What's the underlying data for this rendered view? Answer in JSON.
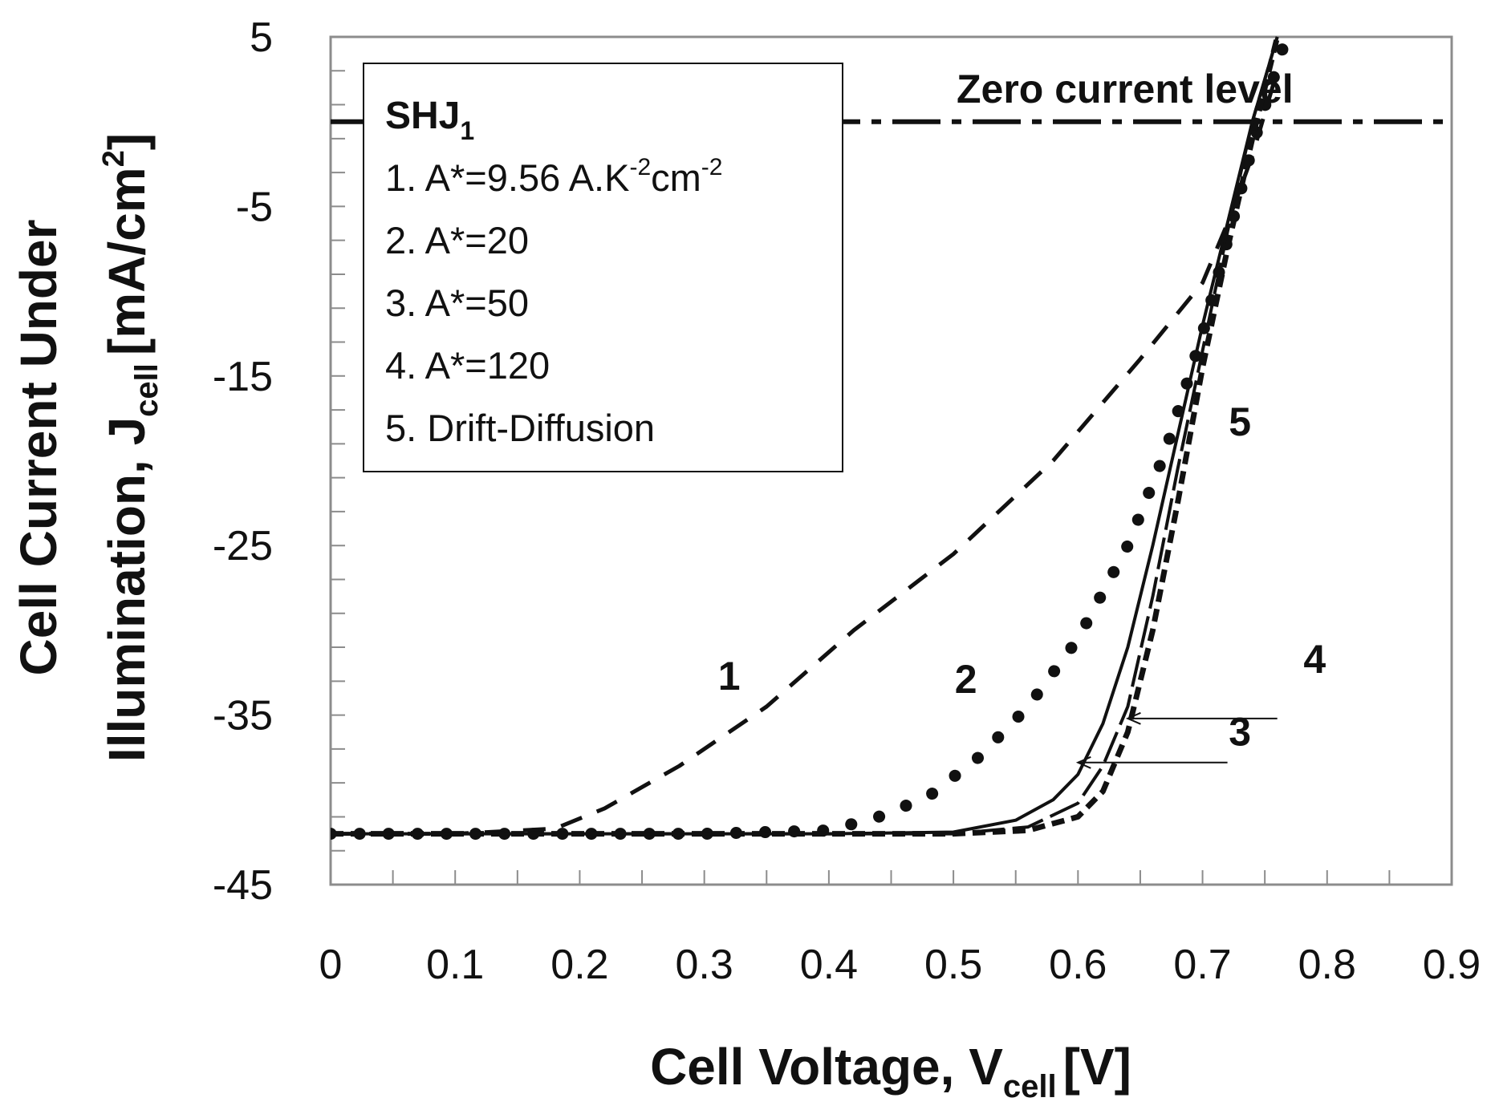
{
  "chart_data": {
    "type": "line",
    "xlabel": "Cell Voltage, V",
    "xlabel_sub": "cell",
    "xlabel_unit": "[V]",
    "ylabel_line1": "Cell Current Under",
    "ylabel_line2": "Illumination, J",
    "ylabel_sub": "cell",
    "ylabel_unit_pre": "[mA/cm",
    "ylabel_unit_sup": "2",
    "ylabel_unit_post": "]",
    "xlim": [
      0,
      0.9
    ],
    "ylim": [
      -45,
      5
    ],
    "x_ticks": [
      "0",
      "0.1",
      "0.2",
      "0.3",
      "0.4",
      "0.5",
      "0.6",
      "0.7",
      "0.8",
      "0.9"
    ],
    "y_ticks": [
      "5",
      "-5",
      "-15",
      "-25",
      "-35",
      "-45"
    ],
    "y_tick_values": [
      5,
      -5,
      -15,
      -25,
      -35,
      -45
    ],
    "zero_line": {
      "y": 0,
      "label": "Zero current level"
    },
    "legend": {
      "title": "SHJ",
      "title_sub": "1",
      "entries": [
        {
          "text": "1. A*=9.56 A.K",
          "sup1": "-2",
          "mid": "cm",
          "sup2": "-2"
        },
        {
          "text": "2. A*=20"
        },
        {
          "text": "3. A*=50"
        },
        {
          "text": "4. A*=120"
        },
        {
          "text": "5. Drift-Diffusion"
        }
      ]
    },
    "series": [
      {
        "name": "1. A*=9.56",
        "label": "1",
        "style": "dashed",
        "x": [
          0,
          0.1,
          0.18,
          0.22,
          0.28,
          0.35,
          0.42,
          0.5,
          0.58,
          0.65,
          0.7,
          0.72,
          0.74,
          0.76
        ],
        "y": [
          -42,
          -42,
          -41.7,
          -40.5,
          -38,
          -34.5,
          -30,
          -25.5,
          -20,
          -14,
          -9.5,
          -6,
          -2,
          3
        ]
      },
      {
        "name": "2. A*=20",
        "label": "2",
        "style": "dotted",
        "x": [
          0,
          0.1,
          0.2,
          0.3,
          0.4,
          0.44,
          0.48,
          0.52,
          0.56,
          0.6,
          0.64,
          0.67,
          0.7,
          0.72,
          0.74,
          0.765
        ],
        "y": [
          -42,
          -42,
          -42,
          -42,
          -41.8,
          -41,
          -39.8,
          -37.5,
          -34.5,
          -30.5,
          -25,
          -19.5,
          -12.5,
          -7,
          -1.5,
          4.5
        ]
      },
      {
        "name": "3. A*=50",
        "label": "3",
        "style": "solid",
        "x": [
          0,
          0.2,
          0.4,
          0.5,
          0.55,
          0.58,
          0.6,
          0.62,
          0.64,
          0.66,
          0.68,
          0.7,
          0.72,
          0.74,
          0.76
        ],
        "y": [
          -42,
          -42,
          -42,
          -41.9,
          -41.2,
          -40,
          -38.5,
          -35.5,
          -31,
          -25,
          -18.5,
          -12,
          -6,
          0,
          5
        ]
      },
      {
        "name": "4. A*=120",
        "label": "4",
        "style": "long-dashed",
        "x": [
          0,
          0.2,
          0.4,
          0.5,
          0.56,
          0.6,
          0.62,
          0.64,
          0.66,
          0.68,
          0.7,
          0.72,
          0.74,
          0.76
        ],
        "y": [
          -42,
          -42,
          -42,
          -42,
          -41.6,
          -40.2,
          -38,
          -34.5,
          -28,
          -20.5,
          -13.5,
          -6.5,
          0,
          5
        ]
      },
      {
        "name": "5. Drift-Diffusion",
        "label": "5",
        "style": "short-dashed",
        "x": [
          0,
          0.2,
          0.4,
          0.5,
          0.56,
          0.6,
          0.62,
          0.64,
          0.66,
          0.68,
          0.7,
          0.72,
          0.74,
          0.76
        ],
        "y": [
          -42,
          -42,
          -42,
          -42,
          -41.8,
          -41,
          -39.5,
          -36,
          -30,
          -22.5,
          -14.5,
          -7.5,
          -1,
          5
        ]
      }
    ],
    "annotations": [
      {
        "text": "1",
        "x": 0.32,
        "y": -33.5
      },
      {
        "text": "2",
        "x": 0.51,
        "y": -33.7
      },
      {
        "text": "5",
        "x": 0.73,
        "y": -18.5
      },
      {
        "text": "4",
        "x": 0.79,
        "y": -32.5
      },
      {
        "text": "3",
        "x": 0.73,
        "y": -36.8
      }
    ],
    "arrows": [
      {
        "label": "4",
        "from": [
          0.76,
          -35.2
        ],
        "to": [
          0.64,
          -35.2
        ]
      },
      {
        "label": "3",
        "from": [
          0.72,
          -37.8
        ],
        "to": [
          0.6,
          -37.8
        ]
      }
    ]
  }
}
